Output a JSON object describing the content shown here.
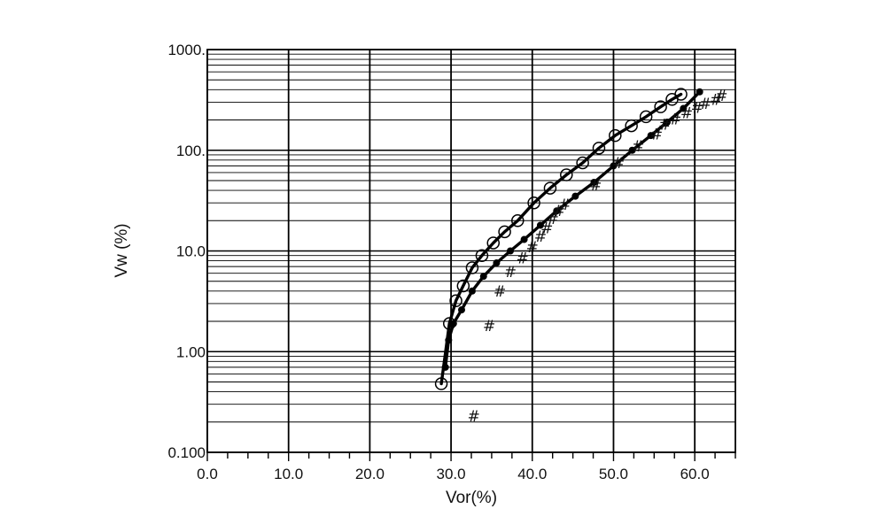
{
  "chart_data": {
    "type": "scatter",
    "title": "",
    "xlabel": "Vor(%)",
    "ylabel": "Vw (%)",
    "xlim": [
      0,
      65
    ],
    "ylim": [
      0.1,
      1000
    ],
    "y_scale": "log",
    "grid": true,
    "x_ticks": [
      0,
      10,
      20,
      30,
      40,
      50,
      60
    ],
    "x_tick_labels": [
      "0.0",
      "10.0",
      "20.0",
      "30.0",
      "40.0",
      "50.0",
      "60.0"
    ],
    "y_ticks": [
      0.1,
      1,
      10,
      100,
      1000
    ],
    "y_tick_labels": [
      "0.100",
      "1.00",
      "10.0",
      "100.",
      "1000."
    ],
    "series": [
      {
        "marker": "open-circle",
        "line": true,
        "x": [
          28.8,
          29.8,
          30.6,
          31.5,
          32.6,
          33.8,
          35.2,
          36.6,
          38.2,
          40.2,
          42.2,
          44.2,
          46.2,
          48.2,
          50.2,
          52.2,
          54.0,
          55.8,
          57.2,
          58.3
        ],
        "y": [
          0.48,
          1.9,
          3.2,
          4.5,
          6.8,
          9.0,
          12.0,
          15.5,
          20,
          30,
          42,
          57,
          75,
          105,
          140,
          175,
          215,
          270,
          320,
          360
        ]
      },
      {
        "marker": "filled-dot",
        "line": true,
        "x": [
          29.3,
          29.7,
          30.3,
          31.3,
          32.6,
          34.0,
          35.6,
          37.3,
          39.0,
          41.0,
          43.0,
          45.3,
          47.6,
          50.0,
          52.3,
          54.6,
          56.6,
          58.6,
          60.6
        ],
        "y": [
          0.7,
          1.3,
          1.9,
          2.6,
          4.0,
          5.6,
          7.6,
          10,
          13,
          18,
          25,
          35,
          48,
          70,
          100,
          140,
          190,
          260,
          380
        ]
      },
      {
        "marker": "hash",
        "line": false,
        "x": [
          32.8,
          34.7,
          36.0,
          37.3,
          38.8,
          40.0,
          41.0,
          41.8,
          42.5,
          43.3,
          44.0,
          47.8,
          50.6,
          53.0,
          55.3,
          56.3,
          57.6,
          59.0,
          60.3,
          61.3,
          62.6,
          63.3
        ],
        "y": [
          0.23,
          1.8,
          4.0,
          6.2,
          8.5,
          11,
          14,
          17,
          21,
          25,
          29,
          45,
          75,
          110,
          145,
          180,
          205,
          235,
          265,
          290,
          320,
          350
        ]
      }
    ]
  }
}
